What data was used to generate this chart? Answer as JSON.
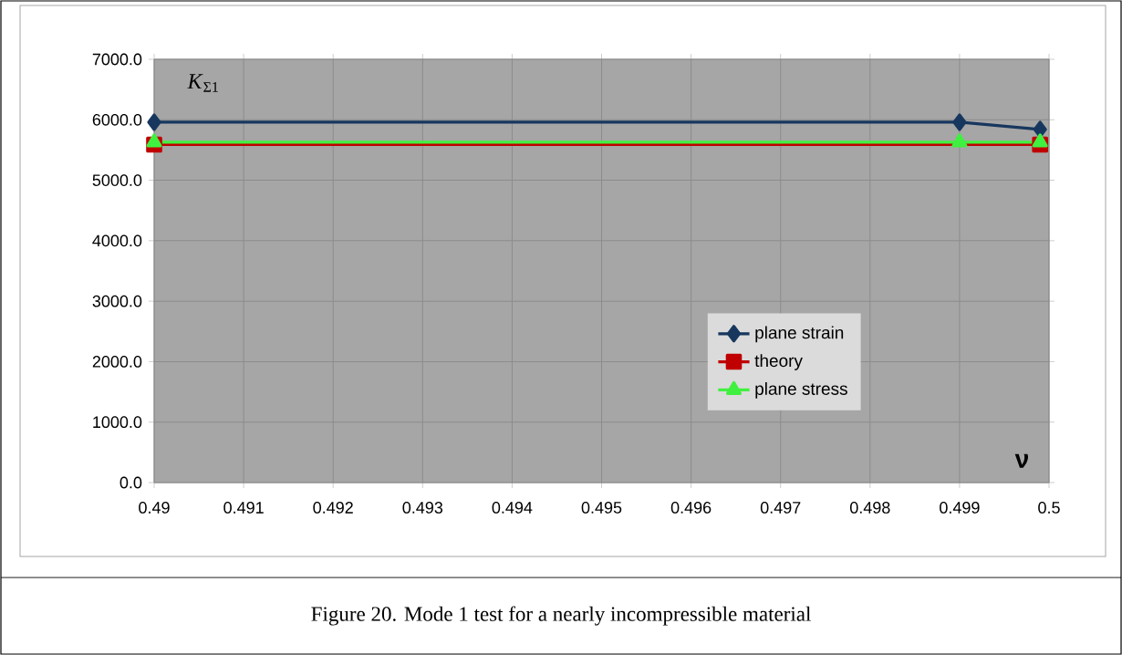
{
  "chart_data": {
    "type": "line",
    "ylabel": "*K*$_{Σ1}$",
    "xlabel": "ν",
    "annotations": [
      "Figure 20. Mode 1 test for a nearly incompressible material"
    ],
    "xlim": [
      0.49,
      0.5
    ],
    "xticks": [
      0.49,
      0.491,
      0.492,
      0.493,
      0.494,
      0.495,
      0.496,
      0.497,
      0.498,
      0.499,
      0.5
    ],
    "ylim": [
      0,
      7000
    ],
    "yticks": [
      {
        "value": 0,
        "label": "0.0"
      },
      {
        "value": 1000,
        "label": "1000.0"
      },
      {
        "value": 2000,
        "label": "2000.0"
      },
      {
        "value": 3000,
        "label": "3000.0"
      },
      {
        "value": 4000,
        "label": "4000.0"
      },
      {
        "value": 5000,
        "label": "5000.0"
      },
      {
        "value": 6000,
        "label": "6000.0"
      },
      {
        "value": 7000,
        "label": "7000.0"
      }
    ],
    "grid": true,
    "legend": "bottom right",
    "series": [
      {
        "name": "plane strain",
        "color": "#17375e",
        "marker": "diamond",
        "x": [
          0.49,
          0.499,
          0.4999
        ],
        "values": [
          5960,
          5960,
          5840
        ]
      },
      {
        "name": "theory",
        "color": "#c00000",
        "marker": "square",
        "x": [
          0.49,
          0.4999
        ],
        "values": [
          5590,
          5590
        ]
      },
      {
        "name": "plane stress",
        "color": "#40f040",
        "marker": "triangle",
        "x": [
          0.49,
          0.499,
          0.4999
        ],
        "values": [
          5630,
          5630,
          5630
        ]
      }
    ]
  }
}
